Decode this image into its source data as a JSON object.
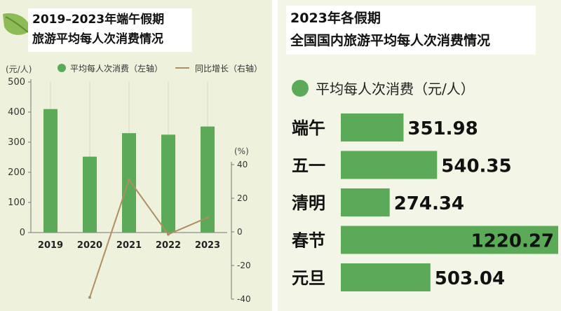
{
  "left": {
    "title_line1": "2019–2023年端午假期",
    "title_line2": "旅游平均每人次消费情况",
    "unit_left": "(元/人)",
    "unit_right": "(%)",
    "legend_bar": "平均每人次消费（左轴）",
    "legend_line": "同比增长（右轴）"
  },
  "right": {
    "title_line1": "2023年各假期",
    "title_line2": "全国国内旅游平均每人次消费情况",
    "legend": "平均每人次消费（元/人）"
  },
  "colors": {
    "bar": "#5aaa57",
    "line": "#b08e63",
    "panel_left": "#eef2dd",
    "panel_right": "#f3f5e6"
  },
  "chart_data": [
    {
      "type": "bar",
      "title": "2019–2023年端午假期旅游平均每人次消费情况",
      "categories": [
        "2019",
        "2020",
        "2021",
        "2022",
        "2023"
      ],
      "series": [
        {
          "name": "平均每人次消费（左轴）",
          "axis": "left",
          "values": [
            410,
            252,
            330,
            325,
            352
          ]
        },
        {
          "name": "同比增长（右轴）",
          "axis": "right",
          "type": "line",
          "values": [
            null,
            -39,
            31,
            -1.5,
            8.5
          ]
        }
      ],
      "ylim_left": [
        0,
        500
      ],
      "yticks_left": [
        0,
        100,
        200,
        300,
        400,
        500
      ],
      "ylim_right": [
        -40,
        40
      ],
      "yticks_right": [
        "-40",
        "-20",
        "0",
        "20",
        "40"
      ],
      "ylabel_left": "(元/人)",
      "ylabel_right": "(%)",
      "grid": false,
      "legend": "top"
    },
    {
      "type": "bar",
      "orientation": "horizontal",
      "title": "2023年各假期全国国内旅游平均每人次消费情况",
      "categories": [
        "端午",
        "五一",
        "清明",
        "春节",
        "元旦"
      ],
      "values": [
        351.98,
        540.35,
        274.34,
        1220.27,
        503.04
      ],
      "value_labels": [
        "351.98",
        "540.35",
        "274.34",
        "1220.27",
        "503.04"
      ],
      "series_name": "平均每人次消费（元/人）",
      "xlim": [
        0,
        1220.27
      ],
      "legend": "top-left"
    }
  ]
}
